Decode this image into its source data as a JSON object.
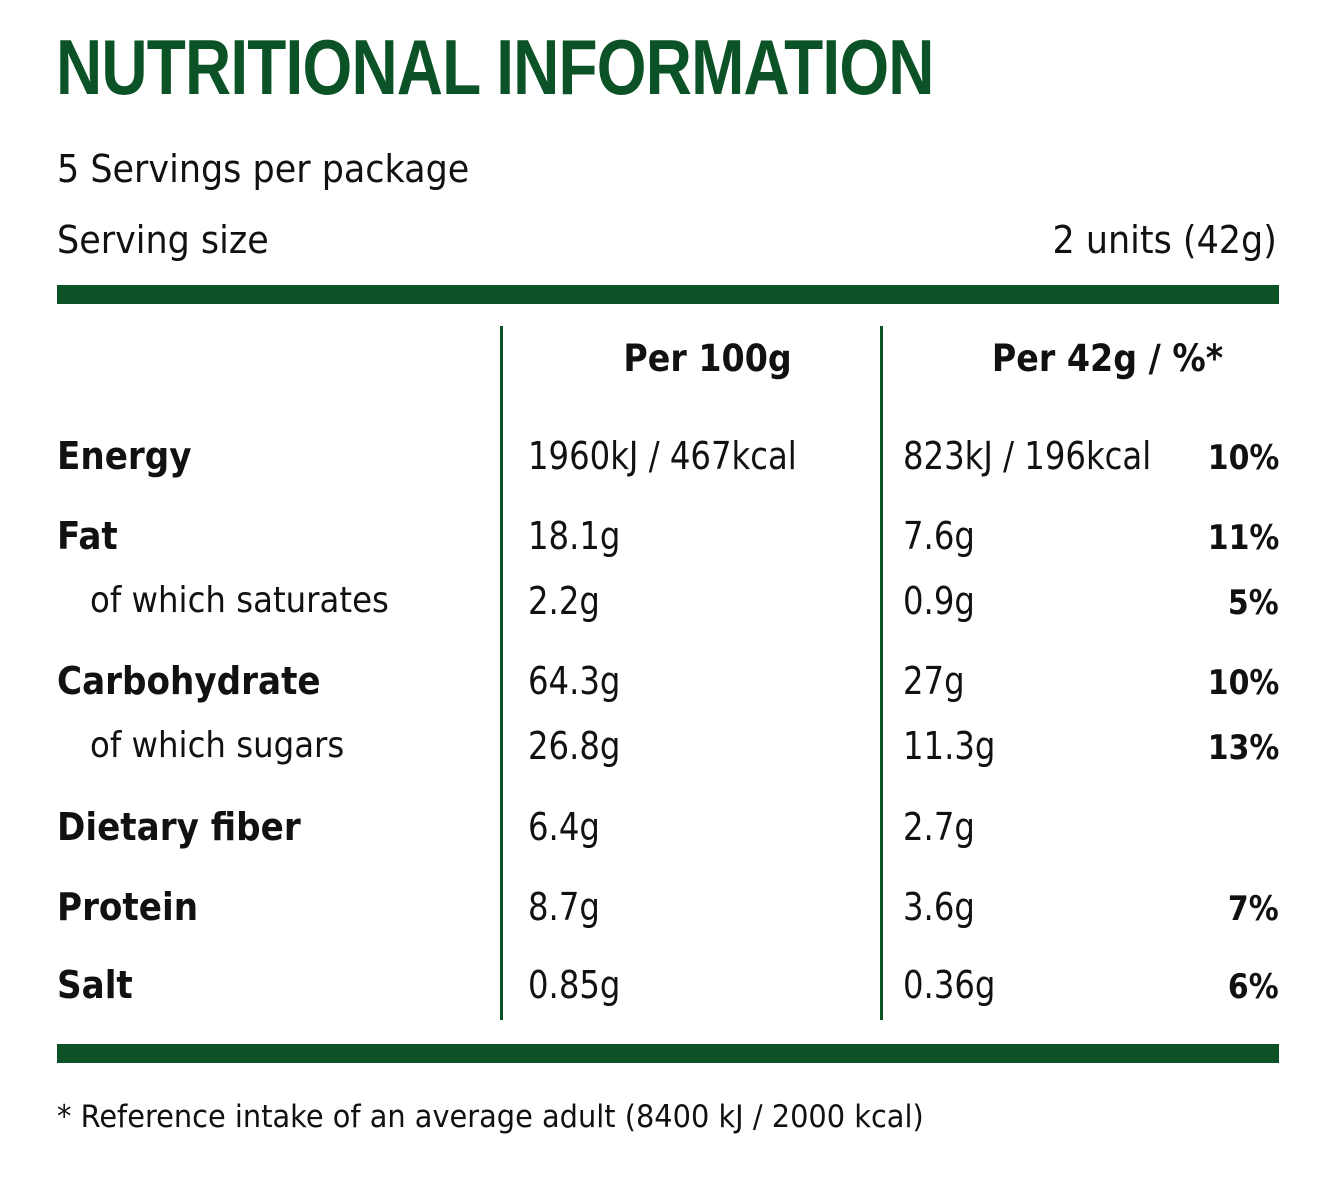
{
  "title": "NUTRITIONAL INFORMATION",
  "servings_per_package": "5 Servings per package",
  "serving_size": {
    "label": "Serving size",
    "value": "2 units (42g)"
  },
  "columns": {
    "per_100g": "Per 100g",
    "per_serving": "Per 42g / %*"
  },
  "rows": [
    {
      "name": "Energy",
      "per_100g": "1960kJ / 467kcal",
      "per_serving": "823kJ / 196kcal",
      "percent": "10%"
    },
    {
      "name": "Fat",
      "per_100g": "18.1g",
      "per_serving": "7.6g",
      "percent": "11%"
    },
    {
      "name": "of which saturates",
      "per_100g": "2.2g",
      "per_serving": "0.9g",
      "percent": "5%"
    },
    {
      "name": "Carbohydrate",
      "per_100g": "64.3g",
      "per_serving": "27g",
      "percent": "10%"
    },
    {
      "name": "of which sugars",
      "per_100g": "26.8g",
      "per_serving": "11.3g",
      "percent": "13%"
    },
    {
      "name": "Dietary fiber",
      "per_100g": "6.4g",
      "per_serving": "2.7g",
      "percent": ""
    },
    {
      "name": "Protein",
      "per_100g": "8.7g",
      "per_serving": "3.6g",
      "percent": "7%"
    },
    {
      "name": "Salt",
      "per_100g": "0.85g",
      "per_serving": "0.36g",
      "percent": "6%"
    }
  ],
  "footnote": "* Reference intake of an average adult (8400 kJ / 2000 kcal)",
  "colors": {
    "accent": "#0b5227",
    "text": "#111111",
    "background": "#ffffff"
  }
}
